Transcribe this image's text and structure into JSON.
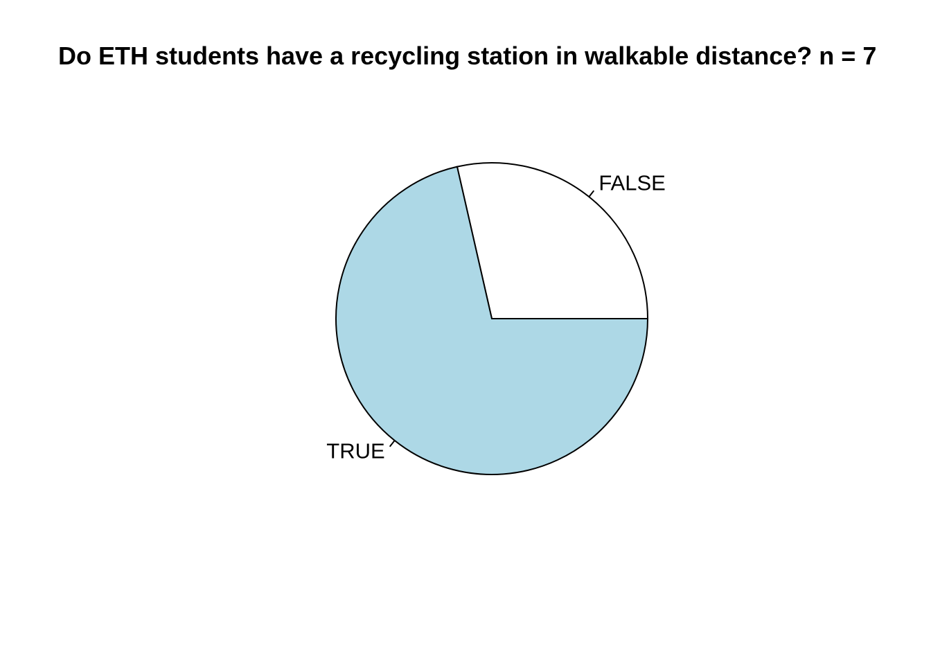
{
  "chart_data": {
    "type": "pie",
    "title": "Do ETH students have a recycling station in walkable distance? n = 7",
    "categories": [
      "FALSE",
      "TRUE"
    ],
    "values": [
      2,
      5
    ],
    "colors": [
      "#ffffff",
      "#add8e6"
    ],
    "start_angle_deg": 0,
    "direction": "counterclockwise",
    "border_color": "#000000"
  }
}
